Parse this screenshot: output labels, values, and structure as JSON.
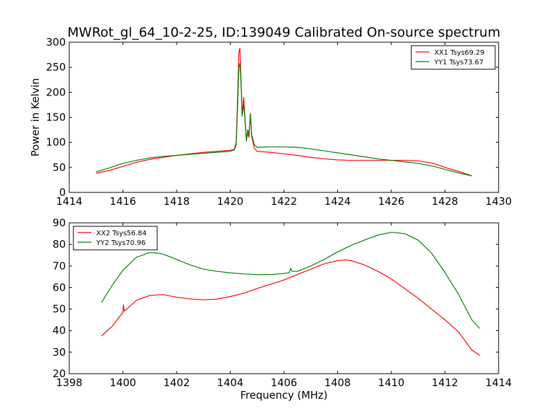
{
  "title": "MWRot_gl_64_10-2-25, ID:139049 Calibrated On-source spectrum",
  "colors": {
    "xx": "#ff0000",
    "yy": "#007f00"
  },
  "chart_data": [
    {
      "type": "line",
      "ylabel": "Power in Kelvin",
      "xlabel": "",
      "xlim": [
        1414,
        1430
      ],
      "ylim": [
        0,
        300
      ],
      "xticks": [
        "1414",
        "1416",
        "1418",
        "1420",
        "1422",
        "1424",
        "1426",
        "1428",
        "1430"
      ],
      "yticks": [
        "0",
        "50",
        "100",
        "150",
        "200",
        "250",
        "300"
      ],
      "legend_position": "top-right",
      "series": [
        {
          "name": "XX1 Tsys69.29",
          "color": "#ff0000",
          "points": [
            [
              1415,
              38
            ],
            [
              1415.5,
              44
            ],
            [
              1416,
              52
            ],
            [
              1416.5,
              60
            ],
            [
              1417,
              66
            ],
            [
              1417.5,
              70
            ],
            [
              1418,
              74
            ],
            [
              1418.5,
              77
            ],
            [
              1419,
              80
            ],
            [
              1419.5,
              82
            ],
            [
              1420,
              84
            ],
            [
              1420.15,
              86
            ],
            [
              1420.22,
              100
            ],
            [
              1420.28,
              200
            ],
            [
              1420.32,
              280
            ],
            [
              1420.36,
              288
            ],
            [
              1420.4,
              230
            ],
            [
              1420.44,
              155
            ],
            [
              1420.5,
              190
            ],
            [
              1420.55,
              150
            ],
            [
              1420.6,
              105
            ],
            [
              1420.65,
              118
            ],
            [
              1420.7,
              110
            ],
            [
              1420.75,
              158
            ],
            [
              1420.8,
              112
            ],
            [
              1420.9,
              88
            ],
            [
              1421,
              82
            ],
            [
              1421.5,
              80
            ],
            [
              1422,
              77
            ],
            [
              1422.5,
              74
            ],
            [
              1423,
              70
            ],
            [
              1423.5,
              67
            ],
            [
              1424,
              65
            ],
            [
              1424.5,
              64
            ],
            [
              1425,
              64
            ],
            [
              1425.5,
              64
            ],
            [
              1426,
              64
            ],
            [
              1426.5,
              64
            ],
            [
              1427,
              63
            ],
            [
              1427.5,
              59
            ],
            [
              1428,
              50
            ],
            [
              1428.5,
              42
            ],
            [
              1429,
              33
            ]
          ]
        },
        {
          "name": "YY1 Tsys73.67",
          "color": "#007f00",
          "points": [
            [
              1415,
              41
            ],
            [
              1415.5,
              49
            ],
            [
              1416,
              58
            ],
            [
              1416.5,
              64
            ],
            [
              1417,
              69
            ],
            [
              1417.5,
              72
            ],
            [
              1418,
              74
            ],
            [
              1418.5,
              76
            ],
            [
              1419,
              78
            ],
            [
              1419.5,
              80
            ],
            [
              1420,
              82
            ],
            [
              1420.15,
              85
            ],
            [
              1420.22,
              95
            ],
            [
              1420.28,
              180
            ],
            [
              1420.32,
              250
            ],
            [
              1420.36,
              258
            ],
            [
              1420.4,
              220
            ],
            [
              1420.44,
              152
            ],
            [
              1420.5,
              175
            ],
            [
              1420.55,
              145
            ],
            [
              1420.6,
              102
            ],
            [
              1420.65,
              125
            ],
            [
              1420.7,
              115
            ],
            [
              1420.75,
              155
            ],
            [
              1420.8,
              115
            ],
            [
              1420.9,
              95
            ],
            [
              1421,
              90
            ],
            [
              1421.5,
              91
            ],
            [
              1422,
              91
            ],
            [
              1422.5,
              90
            ],
            [
              1423,
              87
            ],
            [
              1423.5,
              83
            ],
            [
              1424,
              79
            ],
            [
              1424.5,
              75
            ],
            [
              1425,
              71
            ],
            [
              1425.5,
              67
            ],
            [
              1426,
              64
            ],
            [
              1426.5,
              61
            ],
            [
              1427,
              58
            ],
            [
              1427.5,
              53
            ],
            [
              1428,
              46
            ],
            [
              1428.5,
              39
            ],
            [
              1429,
              33
            ]
          ]
        }
      ]
    },
    {
      "type": "line",
      "ylabel": "",
      "xlabel": "Frequency (MHz)",
      "xlim": [
        1398,
        1414
      ],
      "ylim": [
        20,
        90
      ],
      "xticks": [
        "1398",
        "1400",
        "1402",
        "1404",
        "1406",
        "1408",
        "1410",
        "1412",
        "1414"
      ],
      "yticks": [
        "20",
        "30",
        "40",
        "50",
        "60",
        "70",
        "80",
        "90"
      ],
      "legend_position": "top-left",
      "series": [
        {
          "name": "XX2 Tsys56.84",
          "color": "#ff0000",
          "points": [
            [
              1399.2,
              37.5
            ],
            [
              1399.6,
              42
            ],
            [
              1400,
              48.5
            ],
            [
              1400.02,
              52
            ],
            [
              1400.05,
              49
            ],
            [
              1400.5,
              54
            ],
            [
              1401,
              56.3
            ],
            [
              1401.5,
              56.7
            ],
            [
              1402,
              55.5
            ],
            [
              1402.5,
              54.7
            ],
            [
              1403,
              54.3
            ],
            [
              1403.5,
              54.6
            ],
            [
              1404,
              55.8
            ],
            [
              1404.5,
              57.3
            ],
            [
              1405,
              59.5
            ],
            [
              1405.5,
              61.5
            ],
            [
              1406,
              63.5
            ],
            [
              1406.5,
              66
            ],
            [
              1407,
              68.5
            ],
            [
              1407.5,
              71
            ],
            [
              1408,
              72.5
            ],
            [
              1408.3,
              72.8
            ],
            [
              1408.5,
              72.5
            ],
            [
              1409,
              70.5
            ],
            [
              1409.5,
              67.5
            ],
            [
              1410,
              64
            ],
            [
              1410.5,
              59.5
            ],
            [
              1411,
              55
            ],
            [
              1411.5,
              50
            ],
            [
              1412,
              45
            ],
            [
              1412.5,
              39.5
            ],
            [
              1413,
              31
            ],
            [
              1413.3,
              28.5
            ]
          ]
        },
        {
          "name": "YY2 Tsys70.96",
          "color": "#007f00",
          "points": [
            [
              1399.2,
              53
            ],
            [
              1399.6,
              61
            ],
            [
              1400,
              68
            ],
            [
              1400.5,
              74
            ],
            [
              1401,
              76.2
            ],
            [
              1401.3,
              76
            ],
            [
              1401.5,
              75.5
            ],
            [
              1402,
              73
            ],
            [
              1402.5,
              70.5
            ],
            [
              1403,
              68.5
            ],
            [
              1403.5,
              67.5
            ],
            [
              1404,
              66.8
            ],
            [
              1404.5,
              66.3
            ],
            [
              1405,
              66
            ],
            [
              1405.5,
              66
            ],
            [
              1406,
              66.5
            ],
            [
              1406.2,
              66.8
            ],
            [
              1406.25,
              69
            ],
            [
              1406.3,
              67.5
            ],
            [
              1406.5,
              67.5
            ],
            [
              1407,
              70
            ],
            [
              1407.5,
              73
            ],
            [
              1408,
              76.5
            ],
            [
              1408.5,
              79.5
            ],
            [
              1409,
              82
            ],
            [
              1409.5,
              84.3
            ],
            [
              1410,
              85.6
            ],
            [
              1410.5,
              85
            ],
            [
              1411,
              82
            ],
            [
              1411.5,
              76
            ],
            [
              1412,
              67
            ],
            [
              1412.5,
              57
            ],
            [
              1413,
              45
            ],
            [
              1413.3,
              41
            ]
          ]
        }
      ]
    }
  ]
}
